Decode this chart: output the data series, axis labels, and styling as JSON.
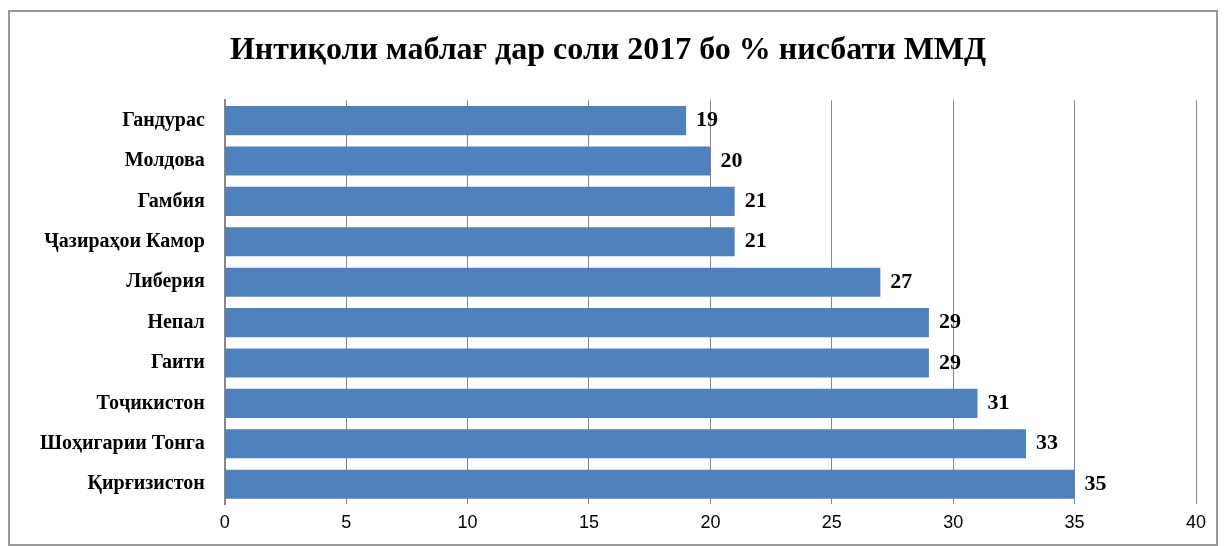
{
  "chart_data": {
    "type": "bar",
    "orientation": "horizontal",
    "title": "Интиқоли маблағ дар соли 2017 бо % нисбати ММД",
    "categories": [
      "Гандурас",
      "Молдова",
      "Гамбия",
      "Ҷазираҳои Камор",
      "Либерия",
      "Непал",
      "Гаити",
      "Тоҷикистон",
      "Шоҳигарии Тонга",
      "Қирғизистон"
    ],
    "values": [
      19,
      20,
      21,
      21,
      27,
      29,
      29,
      31,
      33,
      35
    ],
    "color": "#4f81bd",
    "xlim": [
      0,
      40
    ],
    "xticks": [
      0,
      5,
      10,
      15,
      20,
      25,
      30,
      35,
      40
    ],
    "grid": "x",
    "data_labels": true,
    "legend": false
  }
}
